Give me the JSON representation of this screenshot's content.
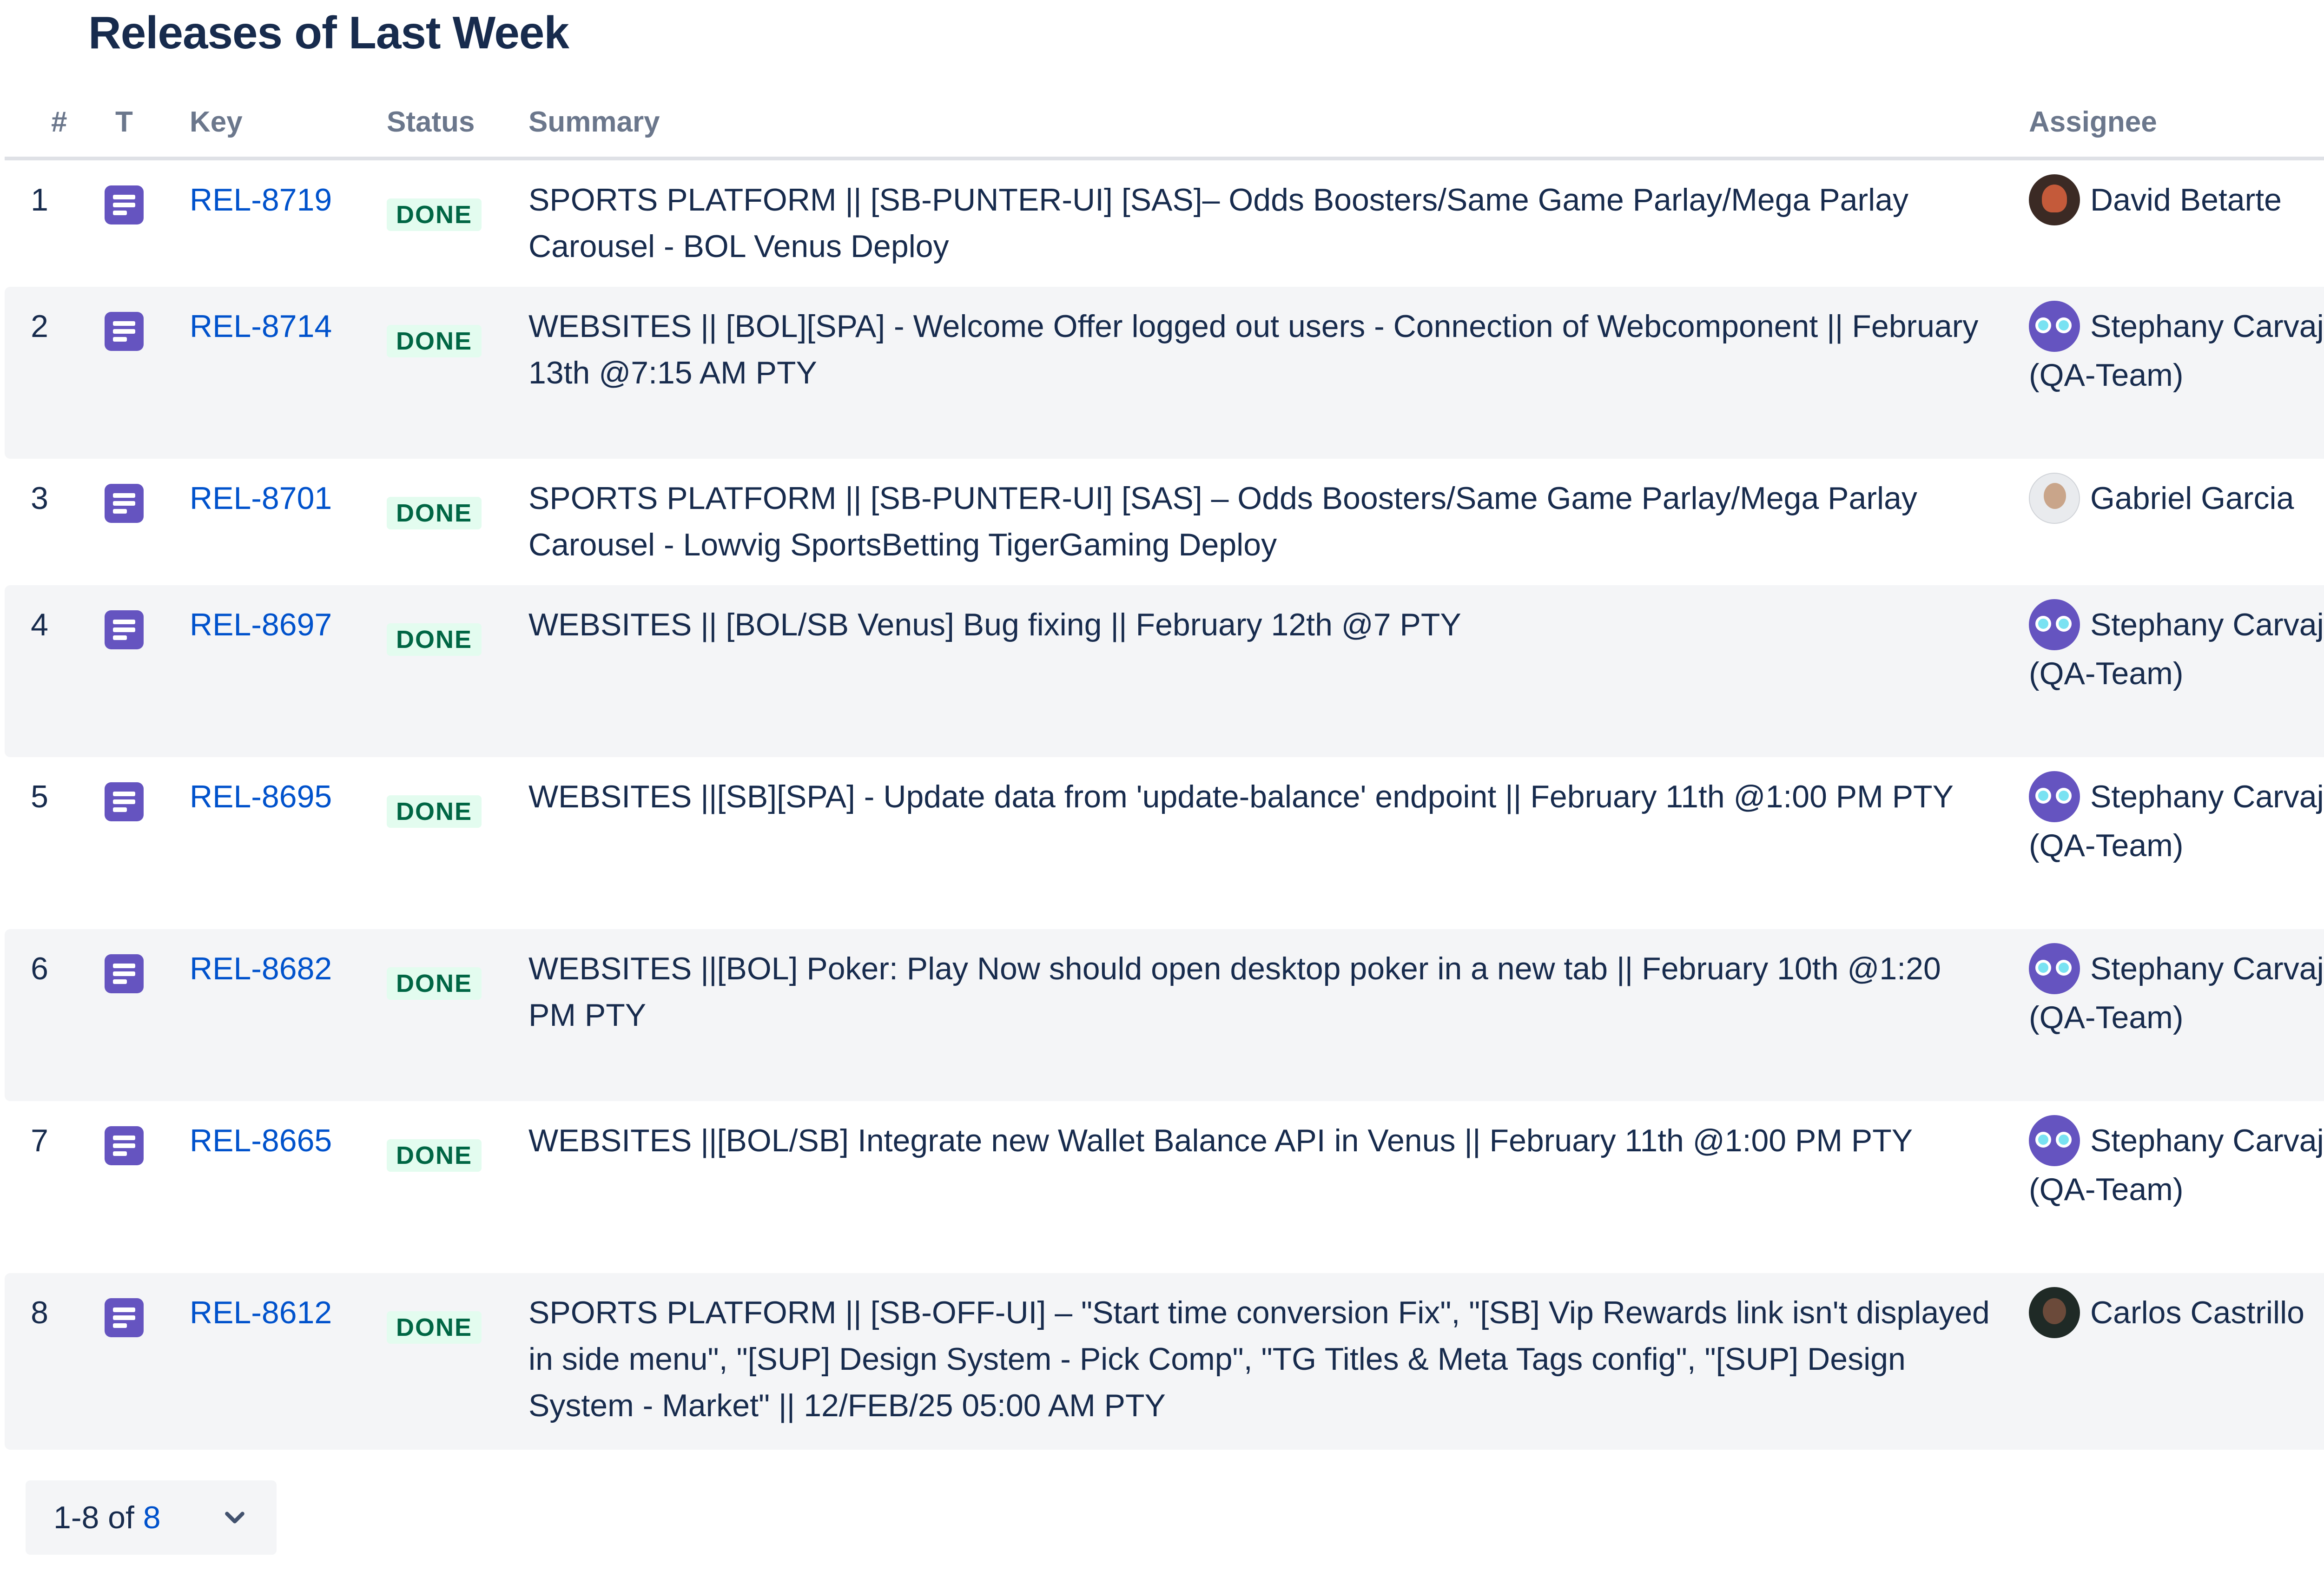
{
  "page": {
    "title": "Releases of Last Week"
  },
  "table": {
    "columns": {
      "num": "#",
      "type": "T",
      "key": "Key",
      "status": "Status",
      "summary": "Summary",
      "assignee": "Assignee"
    },
    "rows": [
      {
        "num": "1",
        "type_icon": "story-icon",
        "key": "REL-8719",
        "status": "DONE",
        "summary": "SPORTS PLATFORM || [SB-PUNTER-UI] [SAS]– Odds Boosters/Same Game Parlay/Mega Parlay Carousel - BOL Venus Deploy",
        "assignee": "David Betarte",
        "avatar": "dark"
      },
      {
        "num": "2",
        "type_icon": "story-icon",
        "key": "REL-8714",
        "status": "DONE",
        "summary": "WEBSITES || [BOL][SPA] - Welcome Offer logged out users - Connection of Webcomponent || February 13th @7:15 AM PTY",
        "assignee": "Stephany Carvajal (QA-Team)",
        "avatar": "robot"
      },
      {
        "num": "3",
        "type_icon": "story-icon",
        "key": "REL-8701",
        "status": "DONE",
        "summary": "SPORTS PLATFORM || [SB-PUNTER-UI] [SAS] – Odds Boosters/Same Game Parlay/Mega Parlay Carousel - Lowvig SportsBetting TigerGaming Deploy",
        "assignee": "Gabriel Garcia",
        "avatar": "light"
      },
      {
        "num": "4",
        "type_icon": "story-icon",
        "key": "REL-8697",
        "status": "DONE",
        "summary": "WEBSITES || [BOL/SB Venus] Bug fixing || February 12th @7 PTY",
        "assignee": "Stephany Carvajal (QA-Team)",
        "avatar": "robot"
      },
      {
        "num": "5",
        "type_icon": "story-icon",
        "key": "REL-8695",
        "status": "DONE",
        "summary": "WEBSITES ||[SB][SPA] - Update data from 'update-balance' endpoint || February 11th @1:00 PM PTY",
        "assignee": "Stephany Carvajal (QA-Team)",
        "avatar": "robot"
      },
      {
        "num": "6",
        "type_icon": "story-icon",
        "key": "REL-8682",
        "status": "DONE",
        "summary": "WEBSITES ||[BOL] Poker: Play Now should open desktop poker in a new tab || February 10th @1:20 PM PTY",
        "assignee": "Stephany Carvajal (QA-Team)",
        "avatar": "robot"
      },
      {
        "num": "7",
        "type_icon": "story-icon",
        "key": "REL-8665",
        "status": "DONE",
        "summary": "WEBSITES ||[BOL/SB] Integrate new Wallet Balance API in Venus || February 11th @1:00 PM PTY",
        "assignee": "Stephany Carvajal (QA-Team)",
        "avatar": "robot"
      },
      {
        "num": "8",
        "type_icon": "story-icon",
        "key": "REL-8612",
        "status": "DONE",
        "summary": "SPORTS PLATFORM || [SB-OFF-UI] – \"Start time conversion Fix\", \"[SB] Vip Rewards link isn't displayed in side menu\", \"[SUP] Design System - Pick Comp\", \"TG Titles & Meta Tags config\", \"[SUP] Design System - Market\" || 12/FEB/25 05:00 AM PTY",
        "assignee": "Carlos Castrillo",
        "avatar": "darkgreen"
      }
    ]
  },
  "pagination": {
    "range": "1-8 of ",
    "total": "8",
    "icon": "chevron-down-icon"
  },
  "colors": {
    "link": "#0052cc",
    "done_bg": "#e3fcef",
    "done_text": "#006644",
    "story_icon": "#6554c0",
    "row_alt_bg": "#f4f5f7"
  }
}
